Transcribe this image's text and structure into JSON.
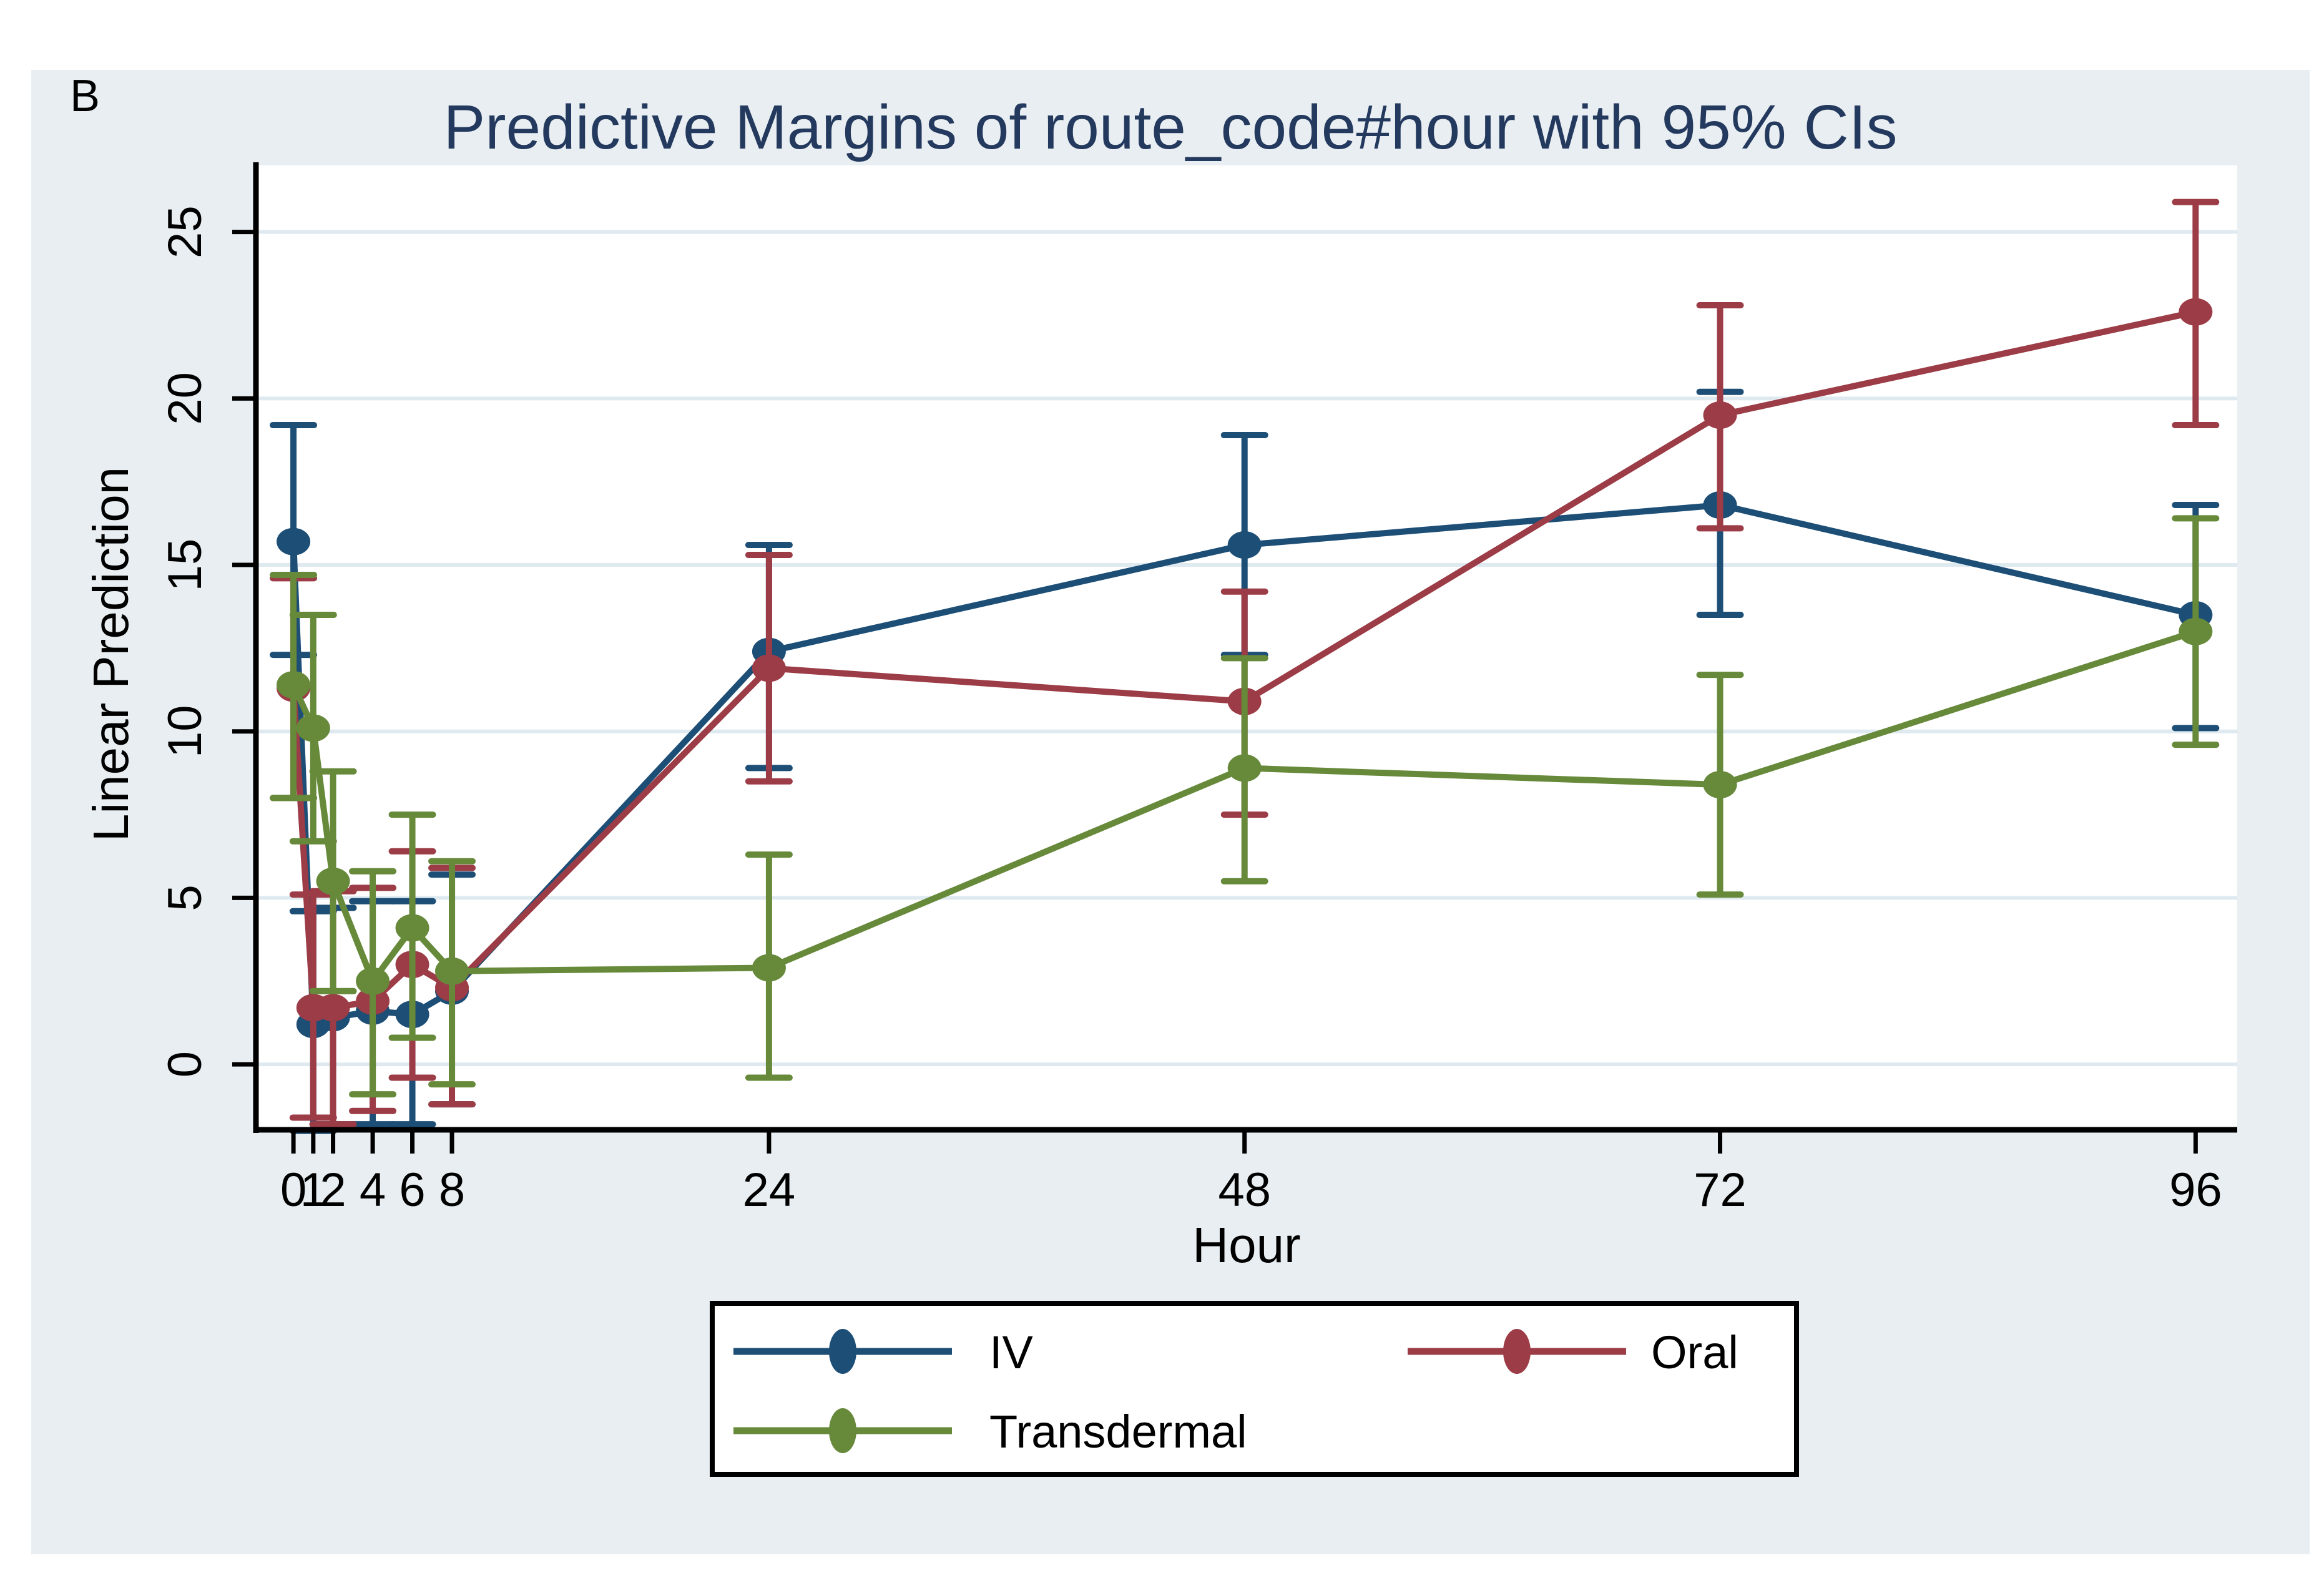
{
  "page": {
    "panel_label": "B",
    "background_page": "#ffffff",
    "background_panel": "#e8eef1",
    "background_plot": "#ffffff",
    "gridline_color": "#dfeaf0",
    "axis_color": "#000000",
    "title_color": "#24395e"
  },
  "chart_data": {
    "type": "line",
    "title": "Predictive Margins of route_code#hour with 95% CIs",
    "xlabel": "Hour",
    "ylabel": "Linear Prediction",
    "x": [
      0,
      1,
      2,
      4,
      6,
      8,
      24,
      48,
      72,
      96
    ],
    "xtick_labels": [
      "0",
      "1",
      "2",
      "4",
      "6",
      "8",
      "24",
      "48",
      "72",
      "96"
    ],
    "yticks": [
      0,
      5,
      10,
      15,
      20,
      25
    ],
    "ytick_labels": [
      "0",
      "5",
      "10",
      "15",
      "20",
      "25"
    ],
    "xlim": [
      -1.83,
      98.1
    ],
    "ylim": [
      -2.06,
      27.0
    ],
    "grid": "horizontal-only",
    "legend_position": "bottom-boxed",
    "error_bars": "95% CI",
    "series": [
      {
        "name": "IV",
        "color": "#1d4e76",
        "values": [
          15.7,
          1.2,
          1.4,
          1.6,
          1.5,
          2.2,
          12.4,
          15.6,
          16.8,
          13.5
        ],
        "ci_low": [
          12.3,
          -2.0,
          -1.8,
          -1.8,
          -1.8,
          -1.2,
          8.9,
          12.3,
          13.5,
          10.1
        ],
        "ci_high": [
          19.2,
          4.6,
          4.7,
          4.9,
          4.9,
          5.7,
          15.6,
          18.9,
          20.2,
          16.8
        ]
      },
      {
        "name": "Oral",
        "color": "#9c3c46",
        "values": [
          11.3,
          1.7,
          1.7,
          1.9,
          3.0,
          2.3,
          11.9,
          10.9,
          19.5,
          22.6
        ],
        "ci_low": [
          8.0,
          -1.6,
          -1.8,
          -1.4,
          -0.4,
          -1.2,
          8.5,
          7.5,
          16.1,
          19.2
        ],
        "ci_high": [
          14.6,
          5.1,
          5.2,
          5.3,
          6.4,
          5.9,
          15.3,
          14.2,
          22.8,
          25.9
        ]
      },
      {
        "name": "Transdermal",
        "color": "#66893a",
        "values": [
          11.4,
          10.1,
          5.5,
          2.5,
          4.1,
          2.8,
          2.9,
          8.9,
          8.4,
          13.0
        ],
        "ci_low": [
          8.0,
          6.7,
          2.2,
          -0.9,
          0.8,
          -0.6,
          -0.4,
          5.5,
          5.1,
          9.6
        ],
        "ci_high": [
          14.7,
          13.5,
          8.8,
          5.8,
          7.5,
          6.1,
          6.3,
          12.2,
          11.7,
          16.4
        ]
      }
    ]
  }
}
